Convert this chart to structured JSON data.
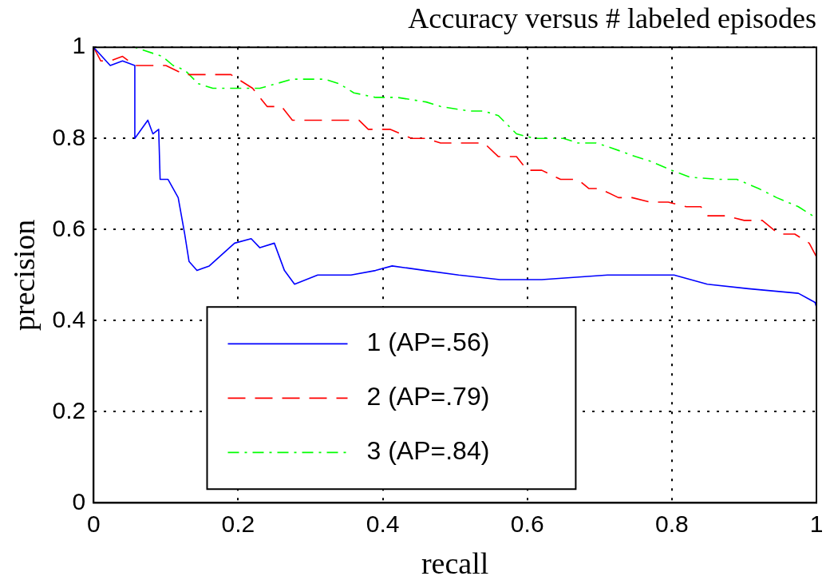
{
  "chart_data": {
    "type": "line",
    "title": "Accuracy versus # labeled episodes",
    "xlabel": "recall",
    "ylabel": "precision",
    "xlim": [
      0,
      1
    ],
    "ylim": [
      0,
      1
    ],
    "xticks": [
      0,
      0.2,
      0.4,
      0.6,
      0.8,
      1
    ],
    "yticks": [
      0,
      0.2,
      0.4,
      0.6,
      0.8,
      1
    ],
    "grid": true,
    "legend": "bottom",
    "marker": "none",
    "series": [
      {
        "name": "1 (AP=.56)",
        "color": "#0000ff",
        "line_style": "solid",
        "x": [
          0,
          0.023,
          0.04,
          0.057,
          0.057,
          0.075,
          0.082,
          0.09,
          0.092,
          0.103,
          0.117,
          0.126,
          0.132,
          0.143,
          0.16,
          0.195,
          0.218,
          0.23,
          0.25,
          0.264,
          0.278,
          0.31,
          0.356,
          0.39,
          0.413,
          0.459,
          0.505,
          0.562,
          0.62,
          0.711,
          0.803,
          0.849,
          0.906,
          0.975,
          0.998,
          1
        ],
        "values": [
          1,
          0.96,
          0.97,
          0.96,
          0.8,
          0.84,
          0.81,
          0.82,
          0.71,
          0.71,
          0.67,
          0.59,
          0.53,
          0.51,
          0.52,
          0.57,
          0.58,
          0.56,
          0.57,
          0.51,
          0.48,
          0.5,
          0.5,
          0.51,
          0.52,
          0.51,
          0.5,
          0.49,
          0.49,
          0.5,
          0.5,
          0.48,
          0.47,
          0.46,
          0.44,
          0.43
        ]
      },
      {
        "name": "2 (AP=.79)",
        "color": "#ff0000",
        "line_style": "dashed",
        "x": [
          0,
          0.01,
          0.023,
          0.04,
          0.057,
          0.1,
          0.126,
          0.157,
          0.19,
          0.22,
          0.24,
          0.26,
          0.275,
          0.3,
          0.325,
          0.367,
          0.38,
          0.41,
          0.44,
          0.46,
          0.48,
          0.54,
          0.56,
          0.585,
          0.6,
          0.62,
          0.646,
          0.67,
          0.685,
          0.7,
          0.726,
          0.745,
          0.77,
          0.795,
          0.82,
          0.84,
          0.85,
          0.875,
          0.9,
          0.925,
          0.948,
          0.97,
          0.99,
          1
        ],
        "values": [
          1,
          0.97,
          0.97,
          0.98,
          0.96,
          0.96,
          0.94,
          0.94,
          0.94,
          0.91,
          0.87,
          0.87,
          0.84,
          0.84,
          0.84,
          0.84,
          0.82,
          0.82,
          0.8,
          0.8,
          0.79,
          0.79,
          0.76,
          0.76,
          0.73,
          0.73,
          0.71,
          0.71,
          0.69,
          0.69,
          0.67,
          0.67,
          0.66,
          0.66,
          0.65,
          0.65,
          0.63,
          0.63,
          0.62,
          0.62,
          0.59,
          0.59,
          0.57,
          0.54
        ]
      },
      {
        "name": "3 (AP=.84)",
        "color": "#00ff00",
        "line_style": "dashdot",
        "x": [
          0,
          0.057,
          0.095,
          0.11,
          0.126,
          0.145,
          0.165,
          0.2,
          0.23,
          0.275,
          0.32,
          0.34,
          0.36,
          0.39,
          0.42,
          0.46,
          0.48,
          0.52,
          0.54,
          0.56,
          0.585,
          0.61,
          0.65,
          0.67,
          0.695,
          0.715,
          0.75,
          0.77,
          0.8,
          0.825,
          0.865,
          0.89,
          0.92,
          0.945,
          0.975,
          0.995,
          1
        ],
        "values": [
          1,
          1,
          0.98,
          0.96,
          0.95,
          0.92,
          0.91,
          0.91,
          0.91,
          0.93,
          0.93,
          0.92,
          0.9,
          0.89,
          0.89,
          0.88,
          0.87,
          0.86,
          0.86,
          0.85,
          0.81,
          0.8,
          0.8,
          0.79,
          0.79,
          0.78,
          0.76,
          0.75,
          0.73,
          0.715,
          0.71,
          0.71,
          0.69,
          0.67,
          0.65,
          0.63,
          0.62
        ]
      }
    ]
  }
}
